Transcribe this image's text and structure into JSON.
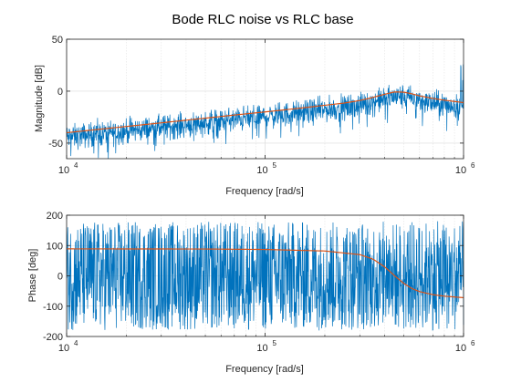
{
  "chart_data": {
    "title": "Bode RLC noise vs RLC base",
    "colors": {
      "noisy": "#0072BD",
      "base": "#D95319",
      "grid": "#e3e3e3",
      "axis": "#262626"
    },
    "grid": true,
    "x_scale": "log",
    "panels": [
      {
        "id": "magnitude",
        "type": "line",
        "xlabel": "Frequency [rad/s]",
        "ylabel": "Magnitude [dB]",
        "xlim": [
          10000,
          1000000
        ],
        "ylim": [
          -65,
          50
        ],
        "xticks": [
          {
            "base": "10",
            "exp": "4"
          },
          {
            "base": "10",
            "exp": "5"
          },
          {
            "base": "10",
            "exp": "6"
          }
        ],
        "yticks": [
          "-50",
          "0",
          "50"
        ],
        "base_curve": {
          "x": [
            10000,
            15000,
            20000,
            30000,
            50000,
            70000,
            100000,
            150000,
            200000,
            250000,
            300000,
            350000,
            400000,
            450000,
            500000,
            550000,
            600000,
            700000,
            800000,
            1000000
          ],
          "y": [
            -40,
            -36.5,
            -34,
            -30.5,
            -26,
            -23,
            -20,
            -16.4,
            -13.6,
            -11.5,
            -9,
            -6,
            -3,
            -0.7,
            -1,
            -2.6,
            -4.5,
            -7,
            -8.7,
            -11
          ]
        },
        "noise": {
          "upper": 13,
          "lower": -22,
          "peak_top_db": 40
        }
      },
      {
        "id": "phase",
        "type": "line",
        "xlabel": "Frequency [rad/s]",
        "ylabel": "Phase [deg]",
        "xlim": [
          10000,
          1000000
        ],
        "ylim": [
          -200,
          200
        ],
        "xticks": [
          {
            "base": "10",
            "exp": "4"
          },
          {
            "base": "10",
            "exp": "5"
          },
          {
            "base": "10",
            "exp": "6"
          }
        ],
        "yticks": [
          "-200",
          "-100",
          "0",
          "100",
          "200"
        ],
        "base_curve": {
          "x": [
            10000,
            50000,
            100000,
            200000,
            300000,
            350000,
            400000,
            450000,
            500000,
            550000,
            600000,
            700000,
            800000,
            1000000
          ],
          "y": [
            89,
            88.5,
            87,
            82,
            70,
            55,
            30,
            0,
            -25,
            -42,
            -52,
            -62,
            -67,
            -72
          ]
        },
        "noise": {
          "upper": 180,
          "lower": -180
        }
      }
    ]
  }
}
